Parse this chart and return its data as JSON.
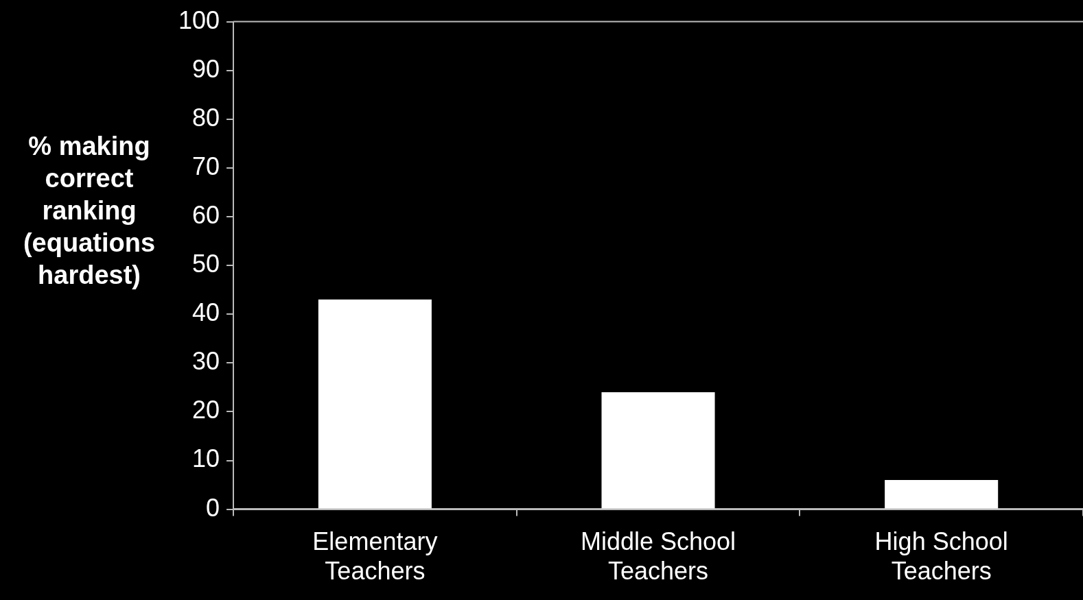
{
  "chart_data": {
    "type": "bar",
    "ylabel": "% making correct ranking (equations hardest)",
    "categories": [
      "Elementary Teachers",
      "Middle School Teachers",
      "High School Teachers"
    ],
    "values": [
      43,
      24,
      6
    ],
    "color": "#ffffff",
    "ylim": [
      0,
      100
    ],
    "yticks": [
      0,
      10,
      20,
      30,
      40,
      50,
      60,
      70,
      80,
      90,
      100
    ],
    "grid": false,
    "legend": false
  }
}
